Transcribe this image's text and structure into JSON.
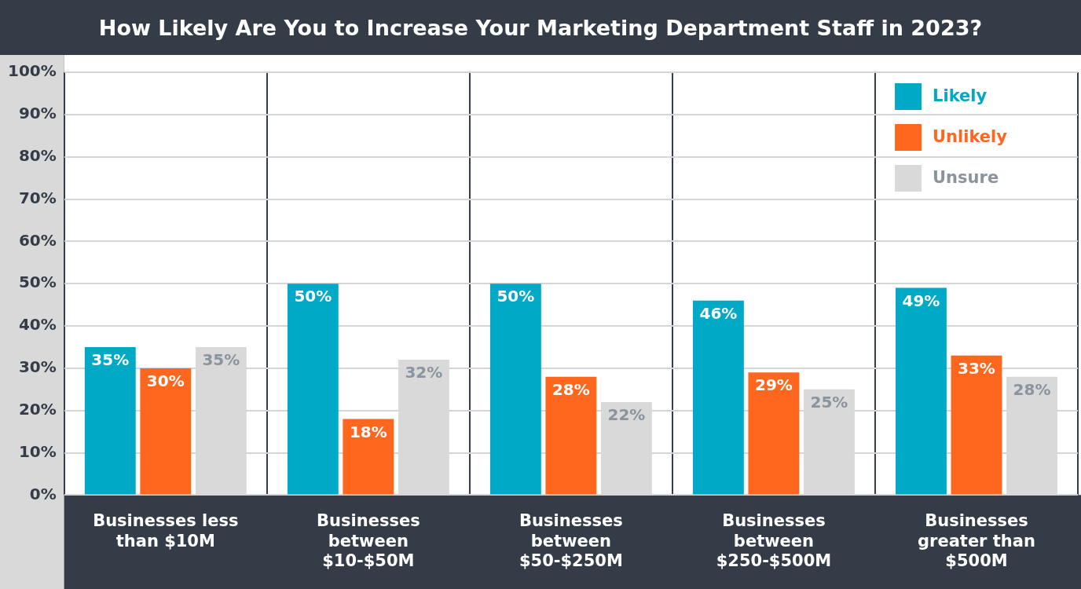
{
  "chart_data": {
    "type": "bar",
    "title": "How Likely Are You to Increase Your Marketing Department Staff in 2023?",
    "categories": [
      "Businesses less than $10M",
      "Businesses between $10-$50M",
      "Businesses between $50-$250M",
      "Businesses between $250-$500M",
      "Businesses greater than $500M"
    ],
    "series": [
      {
        "name": "Likely",
        "color": "#00a9c6",
        "values": [
          35,
          50,
          50,
          46,
          49
        ],
        "value_labels": [
          "35%",
          "50%",
          "50%",
          "46%",
          "49%"
        ]
      },
      {
        "name": "Unlikely",
        "color": "#ff671f",
        "values": [
          30,
          18,
          28,
          29,
          33
        ],
        "value_labels": [
          "30%",
          "18%",
          "28%",
          "29%",
          "33%"
        ]
      },
      {
        "name": "Unsure",
        "color": "#d9d9d9",
        "values": [
          35,
          32,
          22,
          25,
          28
        ],
        "value_labels": [
          "35%",
          "32%",
          "22%",
          "25%",
          "28%"
        ]
      }
    ],
    "ylim": [
      0,
      100
    ],
    "yticks": [
      {
        "value": 0,
        "label": "0%"
      },
      {
        "value": 10,
        "label": "10%"
      },
      {
        "value": 20,
        "label": "20%"
      },
      {
        "value": 30,
        "label": "30%"
      },
      {
        "value": 40,
        "label": "40%"
      },
      {
        "value": 50,
        "label": "50%"
      },
      {
        "value": 60,
        "label": "60%"
      },
      {
        "value": 70,
        "label": "70%"
      },
      {
        "value": 80,
        "label": "80%"
      },
      {
        "value": 90,
        "label": "90%"
      },
      {
        "value": 100,
        "label": "100%"
      }
    ],
    "grid": true,
    "legend": "top right"
  }
}
